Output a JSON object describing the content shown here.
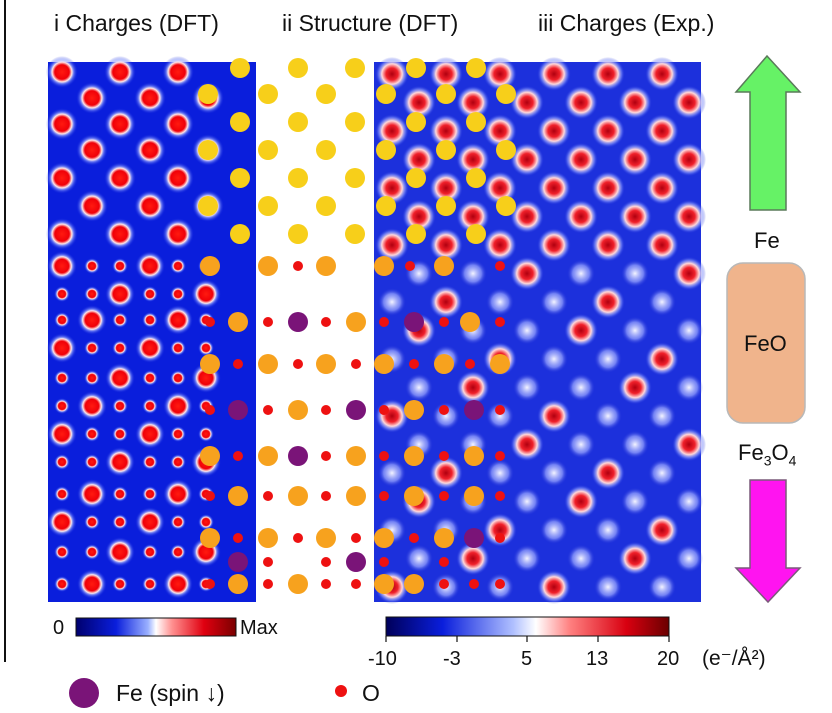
{
  "panels": {
    "dft_charges_title": "i Charges (DFT)",
    "dft_structure_title": "ii Structure (DFT)",
    "exp_charges_title": "iii Charges (Exp.)"
  },
  "colorbar_dft": {
    "min_label": "0",
    "max_label": "Max"
  },
  "colorbar_exp": {
    "ticks": [
      "-10",
      "-3",
      "5",
      "13",
      "20"
    ],
    "unit_label": "(e⁻/Å²)"
  },
  "gradient_legend": {
    "top_label": "Fe",
    "middle_label": "FeO",
    "bottom_label_base": "Fe",
    "bottom_sub1": "3",
    "bottom_label_mid": "O",
    "bottom_sub2": "4"
  },
  "legend": {
    "fe_spin_down": "Fe (spin ↓)",
    "oxygen": "O"
  },
  "colors": {
    "map_blue": "#0a1edc",
    "charge_red": "#e8000a",
    "fe_yellow": "#f7cf1a",
    "fe_orange": "#f7a21e",
    "fe_purple": "#7a1478",
    "oxygen_red": "#ee1111",
    "arrow_green": "#66f266",
    "arrow_magenta": "#ff14f0",
    "feo_box": "#f0b48c"
  }
}
